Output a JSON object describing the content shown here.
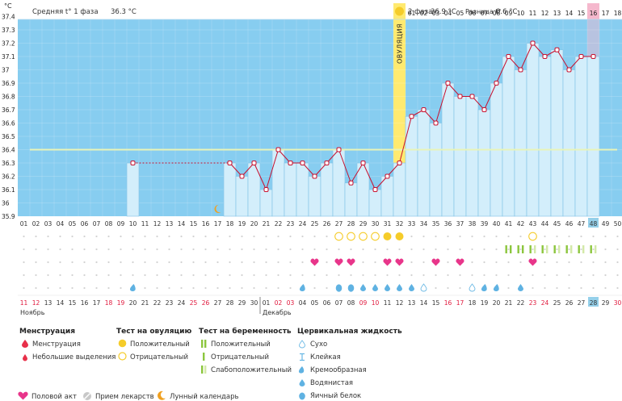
{
  "colors": {
    "sky": "#87cdf0",
    "bar_fill": "#d3eefb",
    "bar_stroke": "#7fc2e6",
    "line": "#c8102e",
    "ovulation": "#ffea70",
    "cover_line": "#e8f4b8",
    "pink_col": "#f5b8cd",
    "highlight_col": "#95d0ea",
    "red_text": "#e0183c",
    "dot_grid": "#d2d2d2"
  },
  "chart_data": {
    "type": "line",
    "title": "",
    "ylabel": "°C",
    "ylim": [
      35.9,
      37.5
    ],
    "y_ticks": [
      "35.9",
      "36",
      "36.1",
      "36.2",
      "36.3",
      "36.4",
      "36.5",
      "36.6",
      "36.7",
      "36.8",
      "36.9",
      "37",
      "37.1",
      "37.2",
      "37.3",
      "37.4"
    ],
    "cycle_days": [
      "01",
      "02",
      "03",
      "04",
      "05",
      "06",
      "07",
      "08",
      "09",
      "10",
      "11",
      "12",
      "13",
      "14",
      "15",
      "16",
      "17",
      "18",
      "19",
      "20",
      "21",
      "22",
      "23",
      "24",
      "25",
      "26",
      "27",
      "28",
      "29",
      "30",
      "31",
      "32",
      "33",
      "34",
      "35",
      "36",
      "37",
      "38",
      "39",
      "40",
      "41",
      "42",
      "43",
      "44",
      "45",
      "46",
      "47",
      "48",
      "49",
      "50"
    ],
    "calendar_dates": [
      "11",
      "12",
      "13",
      "14",
      "15",
      "16",
      "17",
      "18",
      "19",
      "20",
      "21",
      "22",
      "23",
      "24",
      "25",
      "26",
      "27",
      "28",
      "29",
      "30",
      "01",
      "02",
      "03",
      "04",
      "05",
      "06",
      "07",
      "08",
      "09",
      "10",
      "11",
      "12",
      "13",
      "14",
      "15",
      "16",
      "17",
      "18",
      "19",
      "20",
      "21",
      "22",
      "23",
      "24",
      "25",
      "26",
      "27",
      "28",
      "29",
      "30"
    ],
    "weekend_indices": [
      0,
      1,
      7,
      8,
      14,
      15,
      21,
      22,
      28,
      29,
      35,
      36,
      42,
      43,
      49
    ],
    "temperatures": [
      null,
      null,
      null,
      null,
      null,
      null,
      null,
      null,
      null,
      36.3,
      null,
      null,
      null,
      null,
      null,
      null,
      null,
      36.3,
      36.2,
      36.3,
      36.1,
      36.4,
      36.3,
      36.3,
      36.2,
      36.3,
      36.4,
      36.15,
      36.3,
      36.1,
      36.2,
      36.3,
      36.65,
      36.7,
      36.6,
      36.9,
      36.8,
      36.8,
      36.7,
      36.9,
      37.1,
      37.0,
      37.2,
      37.1,
      37.15,
      37.0,
      37.1,
      37.1,
      null,
      null
    ],
    "coverline": 36.4,
    "ovulation_day_index": 31,
    "phase1": {
      "label": "Средняя t° 1 фаза",
      "value": "36.3 °C"
    },
    "phase2": {
      "label": "2 фаза",
      "value": "36.9 °C"
    },
    "difference": {
      "label": "Разница t°",
      "value": "0.6 °C"
    },
    "ovulation_label": "ОВУЛЯЦИЯ",
    "months": [
      {
        "label": "Ноябрь",
        "index": 0
      },
      {
        "label": "Декабрь",
        "index": 20
      }
    ],
    "today_cycle_index": 47,
    "ovulation_test_row": {
      "negative": [
        26,
        27,
        28,
        29,
        42
      ],
      "positive": [
        30,
        31
      ]
    },
    "pregnancy_test_row": {
      "positive": [
        40,
        41
      ],
      "weak": [
        42,
        43,
        44,
        45,
        46,
        47
      ]
    },
    "intercourse_row": [
      24,
      26,
      27,
      30,
      31,
      34,
      36,
      42
    ],
    "fluid_row": [
      {
        "index": 9,
        "type": "creamy"
      },
      {
        "index": 23,
        "type": "creamy"
      },
      {
        "index": 26,
        "type": "egg_white"
      },
      {
        "index": 27,
        "type": "egg_white"
      },
      {
        "index": 28,
        "type": "watery"
      },
      {
        "index": 29,
        "type": "watery"
      },
      {
        "index": 30,
        "type": "watery"
      },
      {
        "index": 31,
        "type": "watery"
      },
      {
        "index": 32,
        "type": "watery"
      },
      {
        "index": 33,
        "type": "dry"
      },
      {
        "index": 37,
        "type": "dry"
      },
      {
        "index": 38,
        "type": "creamy"
      },
      {
        "index": 39,
        "type": "creamy"
      },
      {
        "index": 41,
        "type": "watery"
      }
    ],
    "moon_index": 16
  },
  "legend": {
    "menstruation": {
      "title": "Менструация",
      "items": [
        "Менструация",
        "Небольшие выделения"
      ]
    },
    "ovulation_test": {
      "title": "Тест на овуляцию",
      "items": [
        "Положительный",
        "Отрицательный"
      ]
    },
    "pregnancy_test": {
      "title": "Тест на беременность",
      "items": [
        "Положительный",
        "Отрицательный",
        "Слабоположительный"
      ]
    },
    "cervical_fluid": {
      "title": "Цервикальная жидкость",
      "items": [
        "Сухо",
        "Клейкая",
        "Кремообразная",
        "Водянистая",
        "Яичный белок"
      ]
    },
    "bottom": [
      "Половой акт",
      "Прием лекарств",
      "Лунный календарь"
    ]
  }
}
